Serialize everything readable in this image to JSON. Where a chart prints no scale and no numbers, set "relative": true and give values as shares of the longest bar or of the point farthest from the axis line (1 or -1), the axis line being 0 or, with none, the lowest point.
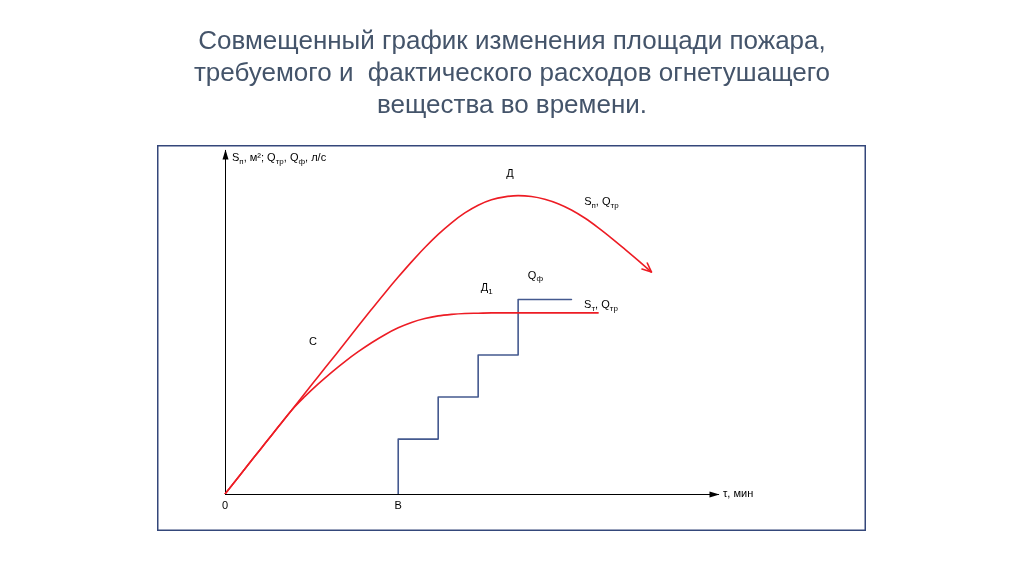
{
  "chart_data": {
    "type": "line",
    "title": "Совмещенный график изменения площади пожара, требуемого и  фактического расходов огнетушащего вещества во времени.",
    "xlabel": "τ, мин",
    "ylabel": "S$_{п}$, м²; Q$_{тр}$, Q$_{ф}$, л/с",
    "relative": true,
    "categories": [
      "0",
      null,
      null,
      null,
      null,
      null,
      null,
      null,
      null,
      null,
      null,
      null,
      null,
      "В",
      null,
      null,
      null,
      null,
      null,
      null,
      null,
      null,
      null,
      null,
      null,
      null,
      null,
      null,
      null,
      null,
      null,
      null,
      null,
      null,
      null,
      null,
      null,
      null
    ],
    "series": [
      {
        "name": "S$_{п}$, Q$_{тр}$",
        "color": "#ed1c24",
        "values": [
          0,
          0.056,
          0.113,
          0.169,
          0.225,
          0.281,
          0.338,
          0.394,
          0.45,
          0.506,
          0.563,
          0.619,
          0.674,
          0.727,
          0.778,
          0.826,
          0.87,
          0.909,
          0.942,
          0.968,
          0.986,
          0.996,
          1,
          0.997,
          0.988,
          0.973,
          0.952,
          0.925,
          0.893,
          0.858,
          0.821,
          0.783,
          0.744,
          null,
          null,
          null,
          null,
          null
        ]
      },
      {
        "name": "S$_{т}$, Q$_{тр}$",
        "color": "#ed1c24",
        "values": [
          0,
          0.056,
          0.113,
          0.169,
          0.225,
          0.281,
          0.327,
          0.369,
          0.408,
          0.444,
          0.477,
          0.507,
          0.534,
          0.557,
          0.575,
          0.588,
          0.597,
          0.602,
          0.605,
          0.606,
          0.607,
          0.607,
          0.607,
          0.607,
          0.607,
          0.607,
          0.607,
          0.607,
          0.607,
          null,
          null,
          null,
          null,
          null,
          null,
          null,
          null,
          null
        ]
      },
      {
        "name": "Q$_{ф}$",
        "type": "step",
        "color": "#44598f",
        "values": [
          null,
          null,
          null,
          null,
          null,
          null,
          null,
          null,
          null,
          null,
          null,
          null,
          null,
          0,
          null,
          null,
          0.184,
          null,
          null,
          0.325,
          null,
          null,
          0.466,
          null,
          null,
          null,
          0.652,
          null,
          null,
          null,
          null,
          null,
          null,
          null,
          null,
          null,
          null,
          null
        ]
      }
    ],
    "annotations": [
      "С",
      "Д",
      "Д$_{1}$"
    ]
  }
}
